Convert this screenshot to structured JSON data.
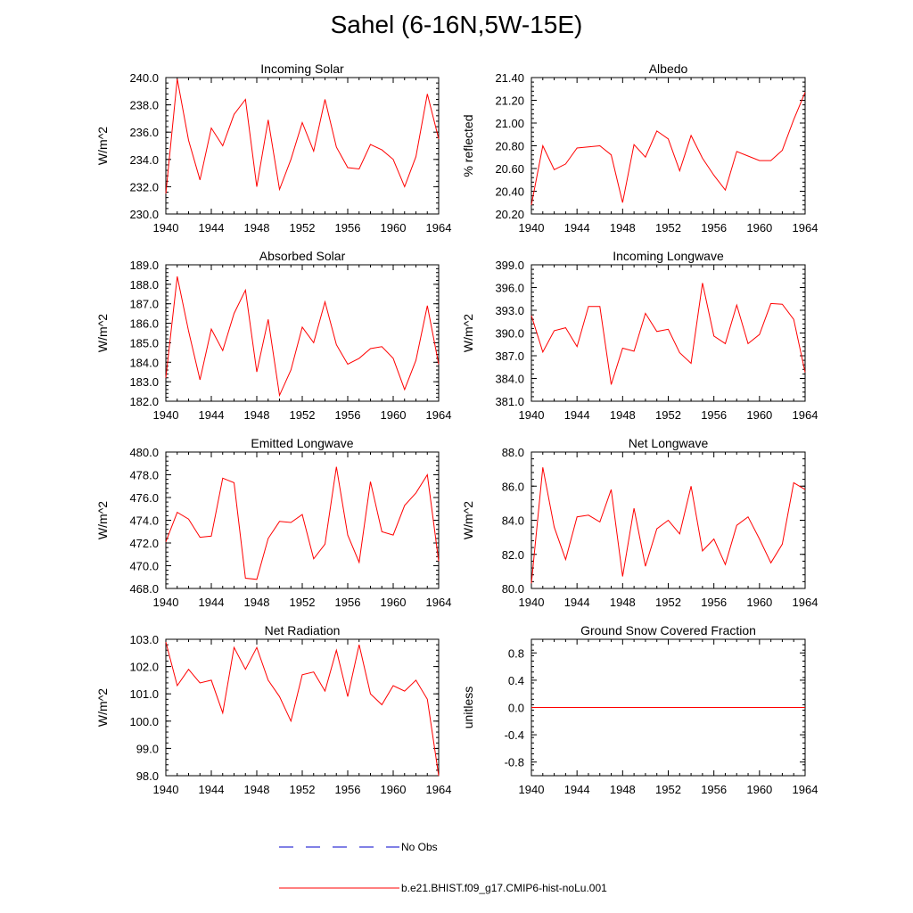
{
  "page": {
    "title": "Sahel (6-16N,5W-15E)"
  },
  "x_axis": {
    "ticks": [
      "1940",
      "1944",
      "1948",
      "1952",
      "1956",
      "1960",
      "1964"
    ],
    "xlim": [
      1940,
      1964
    ]
  },
  "line_color": "#ff0000",
  "legend": [
    {
      "label": "No Obs",
      "color": "#0000cc",
      "style": "dashed"
    },
    {
      "label": "b.e21.BHIST.f09_g17.CMIP6-hist-noLu.001",
      "color": "#ff0000",
      "style": "solid"
    }
  ],
  "chart_data": [
    {
      "type": "line",
      "title": "Incoming Solar",
      "ylabel": "W/m^2",
      "ylim": [
        230.0,
        240.0
      ],
      "yticks": [
        "230.0",
        "232.0",
        "234.0",
        "236.0",
        "238.0",
        "240.0"
      ],
      "x": [
        1940,
        1941,
        1942,
        1943,
        1944,
        1945,
        1946,
        1947,
        1948,
        1949,
        1950,
        1951,
        1952,
        1953,
        1954,
        1955,
        1956,
        1957,
        1958,
        1959,
        1960,
        1961,
        1962,
        1963,
        1964
      ],
      "series": [
        {
          "values": [
            231.5,
            239.9,
            235.4,
            232.5,
            236.3,
            235.0,
            237.3,
            238.4,
            232.0,
            236.9,
            231.8,
            234.0,
            236.7,
            234.6,
            238.4,
            234.9,
            233.4,
            233.3,
            235.1,
            234.7,
            234.0,
            232.0,
            234.2,
            238.8,
            235.5
          ]
        }
      ]
    },
    {
      "type": "line",
      "title": "Albedo",
      "ylabel": "% reflected",
      "ylim": [
        20.2,
        21.4
      ],
      "yticks": [
        "20.20",
        "20.40",
        "20.60",
        "20.80",
        "21.00",
        "21.20",
        "21.40"
      ],
      "x": [
        1940,
        1941,
        1942,
        1943,
        1944,
        1945,
        1946,
        1947,
        1948,
        1949,
        1950,
        1951,
        1952,
        1953,
        1954,
        1955,
        1956,
        1957,
        1958,
        1959,
        1960,
        1961,
        1962,
        1963,
        1964
      ],
      "series": [
        {
          "values": [
            20.28,
            20.8,
            20.59,
            20.64,
            20.78,
            20.79,
            20.8,
            20.72,
            20.3,
            20.81,
            20.7,
            20.93,
            20.86,
            20.58,
            20.89,
            20.69,
            20.54,
            20.41,
            20.75,
            20.71,
            20.67,
            20.67,
            20.76,
            21.03,
            21.27
          ]
        }
      ]
    },
    {
      "type": "line",
      "title": "Absorbed Solar",
      "ylabel": "W/m^2",
      "ylim": [
        182.0,
        189.0
      ],
      "yticks": [
        "182.0",
        "183.0",
        "184.0",
        "185.0",
        "186.0",
        "187.0",
        "188.0",
        "189.0"
      ],
      "x": [
        1940,
        1941,
        1942,
        1943,
        1944,
        1945,
        1946,
        1947,
        1948,
        1949,
        1950,
        1951,
        1952,
        1953,
        1954,
        1955,
        1956,
        1957,
        1958,
        1959,
        1960,
        1961,
        1962,
        1963,
        1964
      ],
      "series": [
        {
          "values": [
            183.2,
            188.4,
            185.6,
            183.1,
            185.7,
            184.6,
            186.5,
            187.7,
            183.5,
            186.2,
            182.3,
            183.6,
            185.8,
            185.0,
            187.1,
            184.9,
            183.9,
            184.2,
            184.7,
            184.8,
            184.2,
            182.6,
            184.1,
            186.9,
            183.9
          ]
        }
      ]
    },
    {
      "type": "line",
      "title": "Incoming Longwave",
      "ylabel": "W/m^2",
      "ylim": [
        381.0,
        399.0
      ],
      "yticks": [
        "381.0",
        "384.0",
        "387.0",
        "390.0",
        "393.0",
        "396.0",
        "399.0"
      ],
      "x": [
        1940,
        1941,
        1942,
        1943,
        1944,
        1945,
        1946,
        1947,
        1948,
        1949,
        1950,
        1951,
        1952,
        1953,
        1954,
        1955,
        1956,
        1957,
        1958,
        1959,
        1960,
        1961,
        1962,
        1963,
        1964
      ],
      "series": [
        {
          "values": [
            392.3,
            387.5,
            390.3,
            390.7,
            388.2,
            393.5,
            393.5,
            383.2,
            388.0,
            387.6,
            392.6,
            390.2,
            390.5,
            387.4,
            386.0,
            396.6,
            389.6,
            388.6,
            393.7,
            388.6,
            389.8,
            393.9,
            393.8,
            391.8,
            384.8
          ]
        }
      ]
    },
    {
      "type": "line",
      "title": "Emitted Longwave",
      "ylabel": "W/m^2",
      "ylim": [
        468.0,
        480.0
      ],
      "yticks": [
        "468.0",
        "470.0",
        "472.0",
        "474.0",
        "476.0",
        "478.0",
        "480.0"
      ],
      "x": [
        1940,
        1941,
        1942,
        1943,
        1944,
        1945,
        1946,
        1947,
        1948,
        1949,
        1950,
        1951,
        1952,
        1953,
        1954,
        1955,
        1956,
        1957,
        1958,
        1959,
        1960,
        1961,
        1962,
        1963,
        1964
      ],
      "series": [
        {
          "values": [
            472.1,
            474.7,
            474.1,
            472.5,
            472.6,
            477.7,
            477.3,
            468.9,
            468.8,
            472.4,
            473.9,
            473.8,
            474.5,
            470.6,
            471.9,
            478.7,
            472.7,
            470.3,
            477.4,
            473.0,
            472.7,
            475.3,
            476.4,
            478.0,
            470.4
          ]
        }
      ]
    },
    {
      "type": "line",
      "title": "Net Longwave",
      "ylabel": "W/m^2",
      "ylim": [
        80.0,
        88.0
      ],
      "yticks": [
        "80.0",
        "82.0",
        "84.0",
        "86.0",
        "88.0"
      ],
      "x": [
        1940,
        1941,
        1942,
        1943,
        1944,
        1945,
        1946,
        1947,
        1948,
        1949,
        1950,
        1951,
        1952,
        1953,
        1954,
        1955,
        1956,
        1957,
        1958,
        1959,
        1960,
        1961,
        1962,
        1963,
        1964
      ],
      "series": [
        {
          "values": [
            80.3,
            87.1,
            83.6,
            81.7,
            84.2,
            84.3,
            83.9,
            85.8,
            80.7,
            84.7,
            81.3,
            83.5,
            84.0,
            83.2,
            86.0,
            82.2,
            82.9,
            81.4,
            83.7,
            84.2,
            82.9,
            81.5,
            82.6,
            86.2,
            85.8
          ]
        }
      ]
    },
    {
      "type": "line",
      "title": "Net Radiation",
      "ylabel": "W/m^2",
      "ylim": [
        98.0,
        103.0
      ],
      "yticks": [
        "98.0",
        "99.0",
        "100.0",
        "101.0",
        "102.0",
        "103.0"
      ],
      "x": [
        1940,
        1941,
        1942,
        1943,
        1944,
        1945,
        1946,
        1947,
        1948,
        1949,
        1950,
        1951,
        1952,
        1953,
        1954,
        1955,
        1956,
        1957,
        1958,
        1959,
        1960,
        1961,
        1962,
        1963,
        1964
      ],
      "series": [
        {
          "values": [
            102.9,
            101.3,
            101.9,
            101.4,
            101.5,
            100.3,
            102.7,
            101.9,
            102.7,
            101.5,
            100.9,
            100.0,
            101.7,
            101.8,
            101.1,
            102.6,
            100.9,
            102.8,
            101.0,
            100.6,
            101.3,
            101.1,
            101.5,
            100.8,
            98.0
          ]
        }
      ]
    },
    {
      "type": "line",
      "title": "Ground Snow Covered Fraction",
      "ylabel": "unitless",
      "ylim": [
        -1.0,
        1.0
      ],
      "yticks": [
        "-0.8",
        "-0.4",
        "0.0",
        "0.4",
        "0.8"
      ],
      "ytick_values": [
        -0.8,
        -0.4,
        0.0,
        0.4,
        0.8
      ],
      "x": [
        1940,
        1941,
        1942,
        1943,
        1944,
        1945,
        1946,
        1947,
        1948,
        1949,
        1950,
        1951,
        1952,
        1953,
        1954,
        1955,
        1956,
        1957,
        1958,
        1959,
        1960,
        1961,
        1962,
        1963,
        1964
      ],
      "series": [
        {
          "values": [
            0,
            0,
            0,
            0,
            0,
            0,
            0,
            0,
            0,
            0,
            0,
            0,
            0,
            0,
            0,
            0,
            0,
            0,
            0,
            0,
            0,
            0,
            0,
            0,
            0
          ]
        }
      ]
    }
  ]
}
